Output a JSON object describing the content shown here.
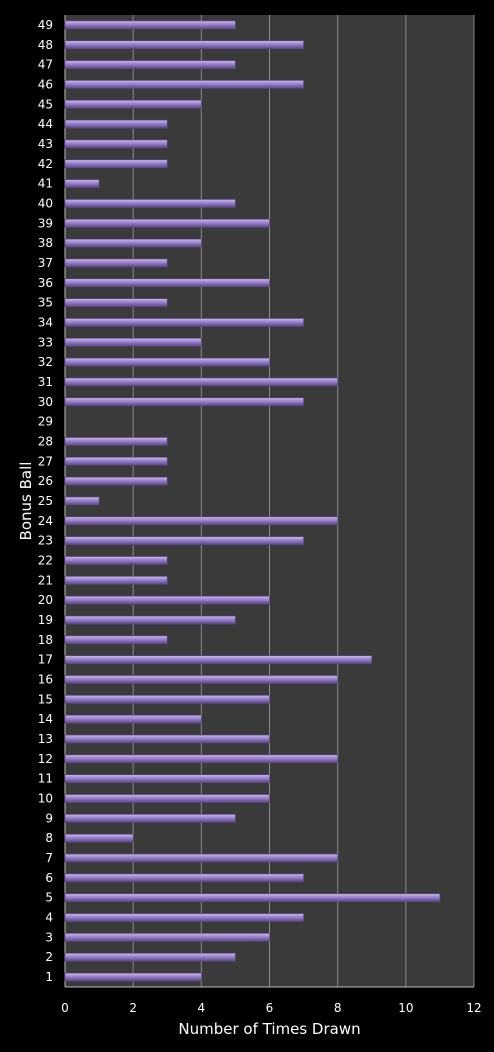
{
  "colors": {
    "background": "#000000",
    "plot_area": "#3a3a3a",
    "gridline": "#8a8a8a",
    "bar_fill": "#9a80cc",
    "bar_highlight": "#c9b8ec",
    "bar_edge": "#5a4685",
    "text": "#ffffff"
  },
  "chart_data": {
    "type": "bar",
    "orientation": "horizontal",
    "title": "",
    "xlabel": "Number of Times Drawn",
    "ylabel": "Bonus Ball",
    "xlim": [
      0,
      12
    ],
    "xticks": [
      0,
      2,
      4,
      6,
      8,
      10,
      12
    ],
    "grid": "vertical",
    "legend": "none",
    "categories": [
      "1",
      "2",
      "3",
      "4",
      "5",
      "6",
      "7",
      "8",
      "9",
      "10",
      "11",
      "12",
      "13",
      "14",
      "15",
      "16",
      "17",
      "18",
      "19",
      "20",
      "21",
      "22",
      "23",
      "24",
      "25",
      "26",
      "27",
      "28",
      "29",
      "30",
      "31",
      "32",
      "33",
      "34",
      "35",
      "36",
      "37",
      "38",
      "39",
      "40",
      "41",
      "42",
      "43",
      "44",
      "45",
      "46",
      "47",
      "48",
      "49"
    ],
    "values": [
      4,
      5,
      6,
      7,
      11,
      7,
      8,
      2,
      5,
      6,
      6,
      8,
      6,
      4,
      6,
      8,
      9,
      3,
      5,
      6,
      3,
      3,
      7,
      8,
      1,
      3,
      3,
      3,
      0,
      7,
      8,
      6,
      4,
      7,
      3,
      6,
      3,
      4,
      6,
      5,
      1,
      3,
      3,
      3,
      4,
      7,
      5,
      7,
      5
    ]
  }
}
